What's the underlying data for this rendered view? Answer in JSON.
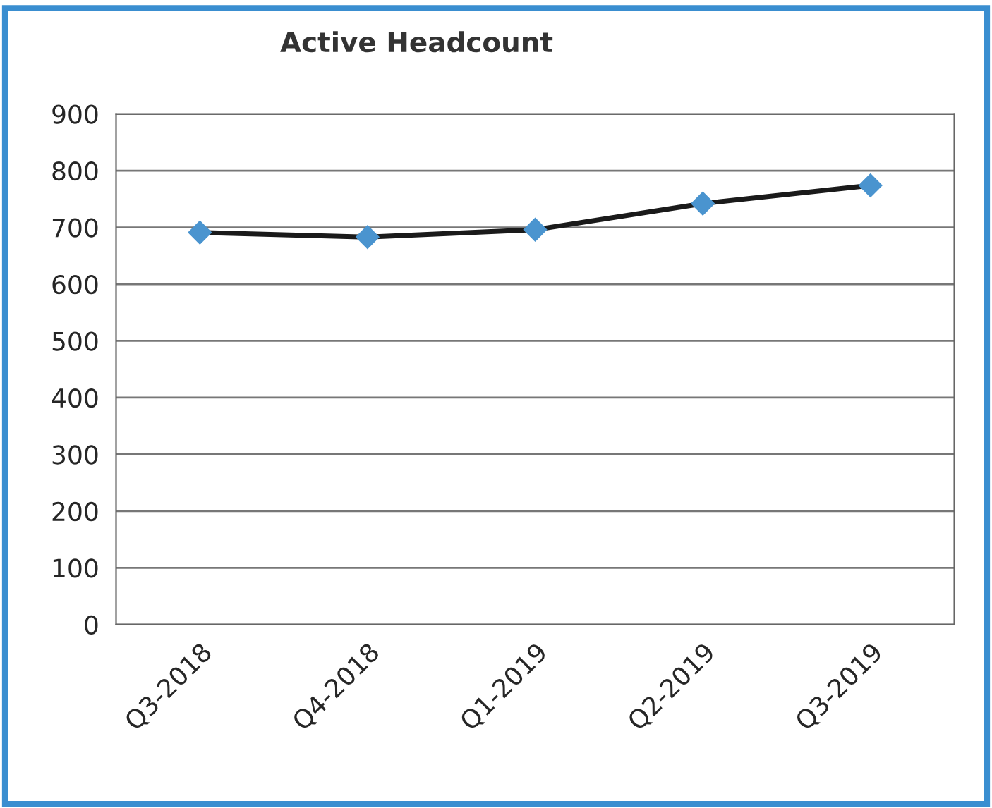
{
  "chart_data": {
    "type": "line",
    "title": "Active Headcount",
    "categories": [
      "Q3-2018",
      "Q4-2018",
      "Q1-2019",
      "Q2-2019",
      "Q3-2019"
    ],
    "series": [
      {
        "color": "#4a94cf",
        "values": [
          691,
          683,
          696,
          742,
          774
        ]
      }
    ],
    "ylim": [
      0,
      900
    ],
    "yticks": [
      0,
      100,
      200,
      300,
      400,
      500,
      600,
      700,
      800,
      900
    ],
    "grid": "y",
    "marker": "diamond",
    "line_style": "solid"
  }
}
